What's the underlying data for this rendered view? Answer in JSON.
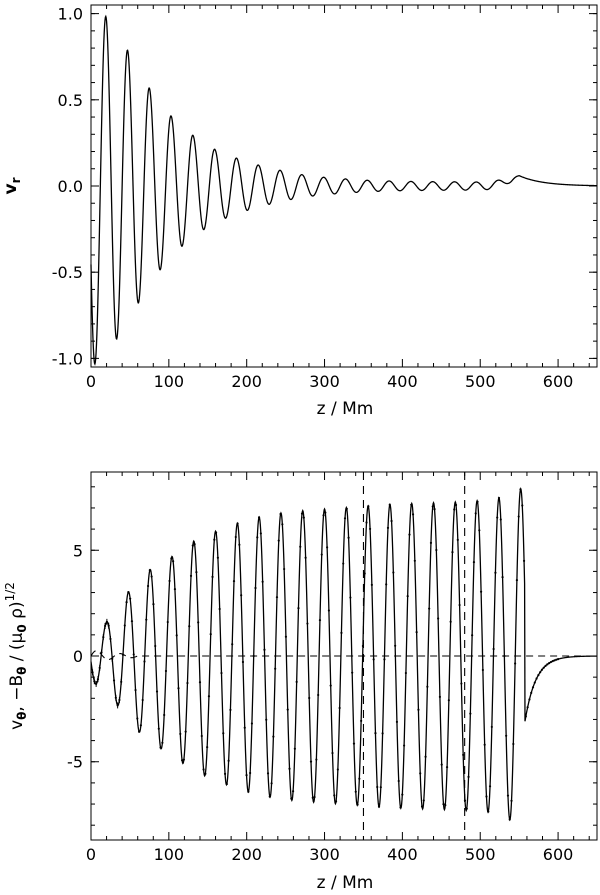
{
  "chart_data": [
    {
      "type": "line",
      "id": "top",
      "xlabel": "z / Mm",
      "ylabel": "v",
      "ylabel_sub": "r",
      "xlim": [
        0,
        650
      ],
      "ylim": [
        -1.05,
        1.05
      ],
      "xticks": [
        0,
        100,
        200,
        300,
        400,
        500,
        600
      ],
      "yticks": [
        -1.0,
        -0.5,
        0.0,
        0.5,
        1.0
      ],
      "ytick_labels": [
        "-1.0",
        "-0.5",
        "0.0",
        "0.5",
        "1.0"
      ],
      "series": [
        {
          "name": "v_r",
          "style": "solid",
          "wavelength_mm": 28,
          "peak_at_mm": 19,
          "bump": {
            "z": 550,
            "value": 0.06
          },
          "envelope": {
            "z": [
              0,
              20,
              48,
              76,
              104,
              132,
              160,
              188,
              216,
              244,
              272,
              300,
              330,
              360,
              400,
              440,
              480,
              520,
              540,
              550,
              575,
              600,
              625,
              650
            ],
            "amplitude": [
              1.05,
              0.98,
              0.78,
              0.56,
              0.4,
              0.29,
              0.21,
              0.16,
              0.12,
              0.09,
              0.065,
              0.05,
              0.04,
              0.032,
              0.027,
              0.025,
              0.024,
              0.022,
              0.015,
              0.0,
              0.0,
              0.0,
              0.0,
              0.0
            ]
          }
        }
      ]
    },
    {
      "type": "line",
      "id": "bottom",
      "xlabel": "z / Mm",
      "ylabel": "v_θ, −B_θ / (μ_0 ρ)^{1/2}",
      "ylabel_parts": [
        "v",
        "θ",
        ",  −B",
        "θ",
        " / (",
        "μ",
        "0",
        " ρ)",
        "1/2"
      ],
      "xlim": [
        0,
        650
      ],
      "ylim": [
        -8.7,
        8.7
      ],
      "xticks": [
        0,
        100,
        200,
        300,
        400,
        500,
        600
      ],
      "yticks": [
        -5,
        0,
        5
      ],
      "ytick_labels": [
        "-5",
        "0",
        "5"
      ],
      "vertical_markers": [
        350,
        480
      ],
      "series": [
        {
          "name": "v_theta",
          "style": "solid",
          "wavelength_mm": 28,
          "peak_at_mm": 20,
          "end_z": 557,
          "tail": {
            "start_value": -3.2,
            "decay_mm": 14
          },
          "envelope": {
            "z": [
              0,
              20,
              45,
              72,
              100,
              130,
              160,
              190,
              220,
              250,
              280,
              320,
              360,
              400,
              440,
              480,
              520,
              547,
              557
            ],
            "amplitude": [
              1.2,
              1.6,
              2.9,
              4.0,
              4.6,
              5.4,
              5.9,
              6.3,
              6.6,
              6.8,
              6.9,
              7.0,
              7.1,
              7.2,
              7.25,
              7.3,
              7.4,
              7.9,
              7.9
            ]
          }
        },
        {
          "name": "-B_theta/(mu0 rho)^1/2",
          "style": "dotted-with-errors",
          "note": "overlaps v_theta"
        },
        {
          "name": "background",
          "style": "dashed",
          "values_near": 0
        }
      ]
    }
  ]
}
